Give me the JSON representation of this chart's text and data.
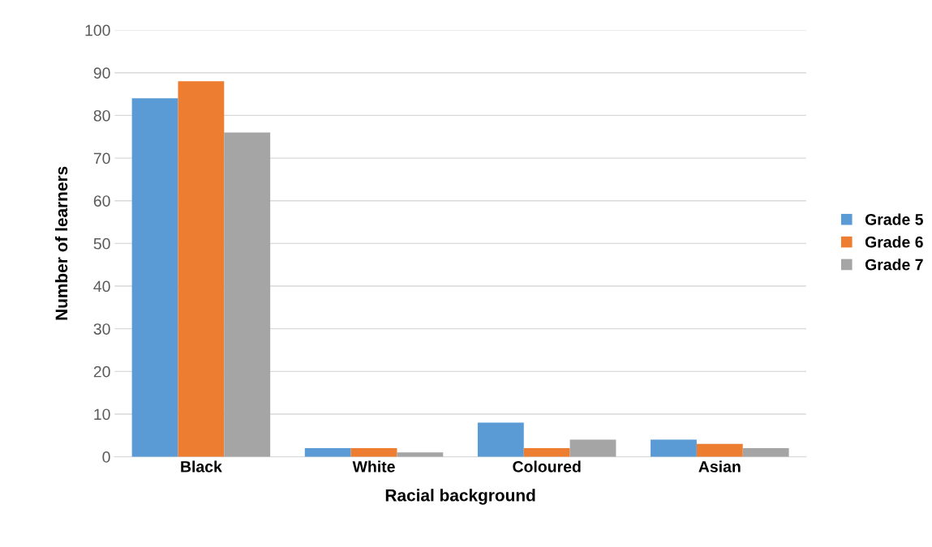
{
  "chart_data": {
    "type": "bar",
    "xlabel": "Racial background",
    "ylabel": "Number of learners",
    "categories": [
      "Black",
      "White",
      "Coloured",
      "Asian"
    ],
    "series": [
      {
        "name": "Grade 5",
        "color": "#5b9bd5",
        "values": [
          84,
          2,
          8,
          4
        ]
      },
      {
        "name": "Grade 6",
        "color": "#ed7d31",
        "values": [
          88,
          2,
          2,
          3
        ]
      },
      {
        "name": "Grade 7",
        "color": "#a5a5a5",
        "values": [
          76,
          1,
          4,
          2
        ]
      }
    ],
    "ylim": [
      0,
      100
    ],
    "yticks": [
      0,
      10,
      20,
      30,
      40,
      50,
      60,
      70,
      80,
      90,
      100
    ],
    "grid": "y",
    "legend": "right"
  }
}
